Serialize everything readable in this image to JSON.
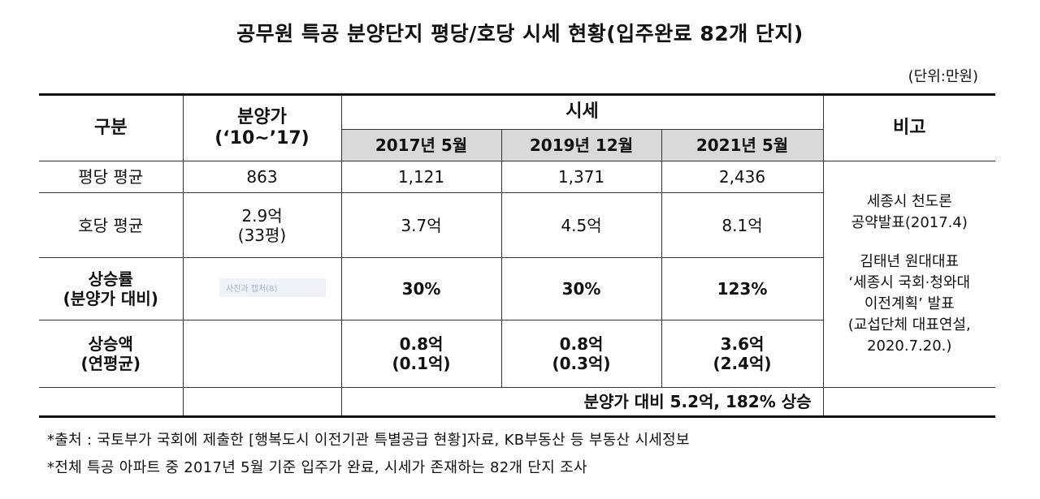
{
  "title": "공무원 특공 분양단지 평당/호당 시세 현황(입주완료 82개 단지)",
  "unit": "(단위:만원)",
  "headers": {
    "category": "구분",
    "sale_price_line1": "분양가",
    "sale_price_line2": "(‘10~’17)",
    "market": "시세",
    "periods": [
      "2017년 5월",
      "2019년 12월",
      "2021년 5월"
    ],
    "note": "비고"
  },
  "rows": [
    {
      "label": "평당 평균",
      "sale": "863",
      "values": [
        "1,121",
        "1,371",
        "2,436"
      ]
    },
    {
      "label": "호당 평균",
      "sale_line1": "2.9억",
      "sale_line2": "(33평)",
      "values": [
        "3.7억",
        "4.5억",
        "8.1억"
      ]
    },
    {
      "label_line1": "상승률",
      "label_line2": "(분양가 대비)",
      "sale": "-",
      "values": [
        "30%",
        "30%",
        "123%"
      ]
    },
    {
      "label_line1": "상승액",
      "label_line2": "(연평균)",
      "values": [
        {
          "line1": "0.8억",
          "line2": "(0.1억)"
        },
        {
          "line1": "0.8억",
          "line2": "(0.3억)"
        },
        {
          "line1": "3.6억",
          "line2": "(2.4억)"
        }
      ]
    }
  ],
  "summary": "분양가 대비 5.2억, 182% 상승",
  "note_lines": [
    "세종시 천도론",
    "공약발표(2017.4)",
    "김태년 원대대표",
    "‘세종시 국회·청와대",
    "이전계획’ 발표",
    "(교섭단체 대표연설,",
    "2020.7.20.)"
  ],
  "watermark": "사진과 캡처(8)",
  "footnotes": [
    "*출처 : 국토부가 국회에 제출한 [행복도시 이전기관 특별공급 현황]자료, KB부동산 등 부동산 시세정보",
    "*전체 특공 아파트 중 2017년 5월 기준 입주가 완료, 시세가 존재하는 82개 단지 조사"
  ]
}
